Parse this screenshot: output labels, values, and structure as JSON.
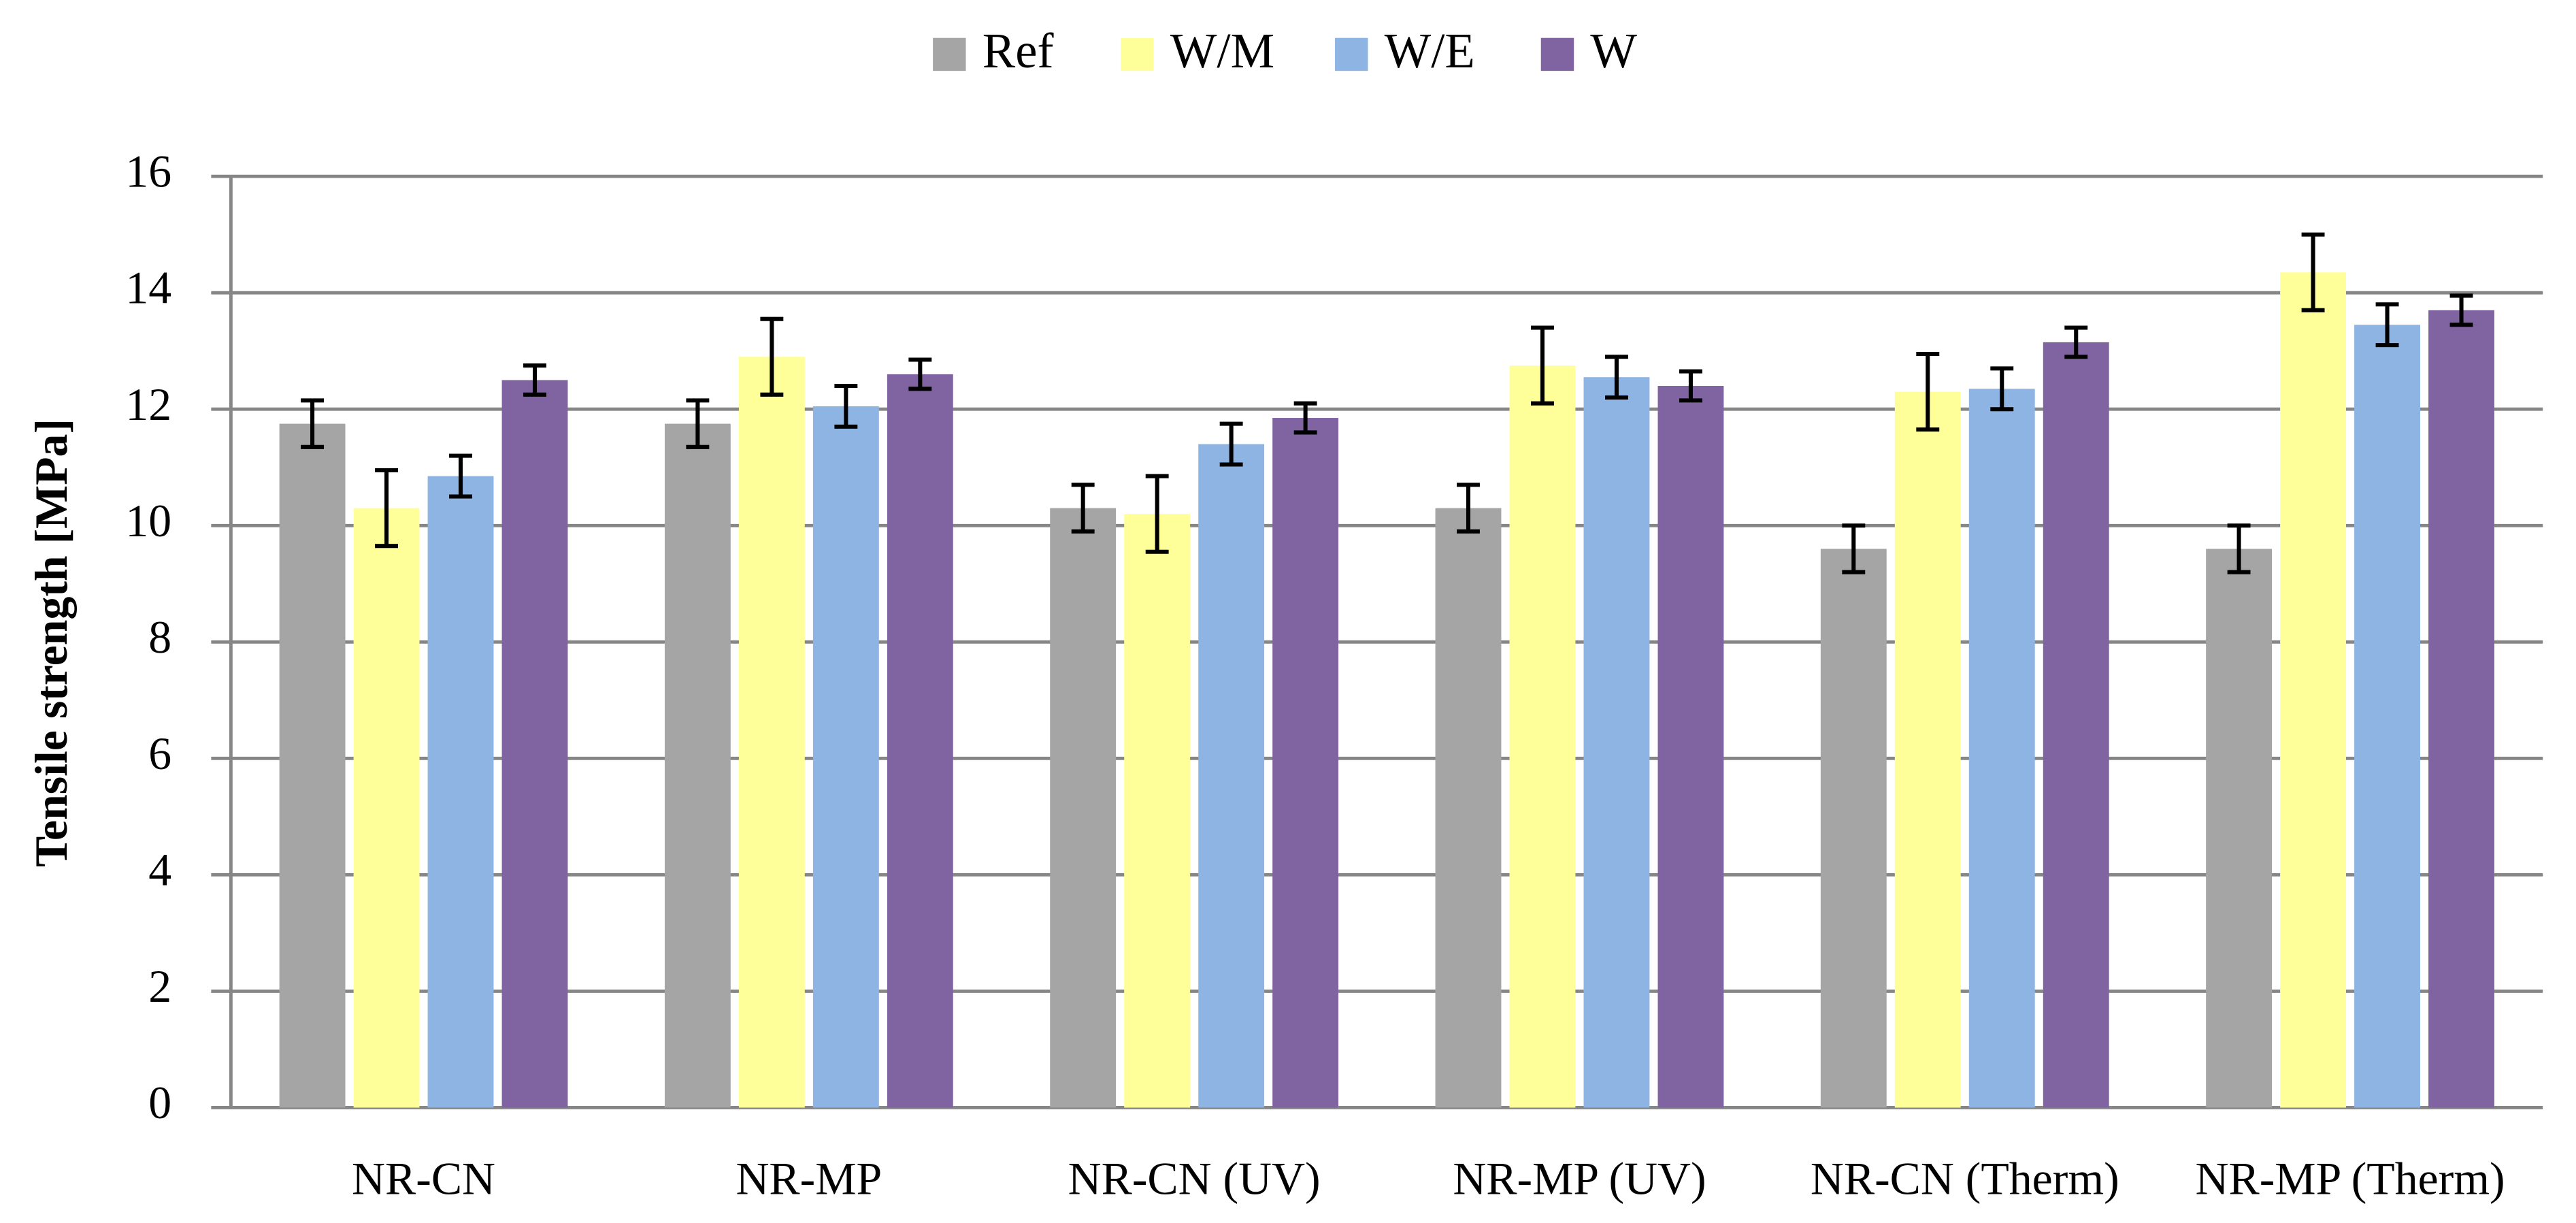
{
  "chart_data": {
    "type": "bar",
    "y_label": "Tensile strength [MPa]",
    "categories": [
      "NR-CN",
      "NR-MP",
      "NR-CN (UV)",
      "NR-MP (UV)",
      "NR-CN (Therm)",
      "NR-MP (Therm)"
    ],
    "series": [
      {
        "name": "Ref",
        "color": "#a5a5a5",
        "values": [
          11.75,
          11.75,
          10.3,
          10.3,
          9.6,
          9.6
        ],
        "errors": [
          0.4,
          0.4,
          0.4,
          0.4,
          0.4,
          0.4
        ]
      },
      {
        "name": "W/M",
        "color": "#ffff9a",
        "values": [
          10.3,
          12.9,
          10.2,
          12.75,
          12.3,
          14.35
        ],
        "errors": [
          0.65,
          0.65,
          0.65,
          0.65,
          0.65,
          0.65
        ]
      },
      {
        "name": "W/E",
        "color": "#8eb4e3",
        "values": [
          10.85,
          12.05,
          11.4,
          12.55,
          12.35,
          13.45
        ],
        "errors": [
          0.35,
          0.35,
          0.35,
          0.35,
          0.35,
          0.35
        ]
      },
      {
        "name": "W",
        "color": "#8064a2",
        "values": [
          12.5,
          12.6,
          11.85,
          12.4,
          13.15,
          13.7
        ],
        "errors": [
          0.25,
          0.25,
          0.25,
          0.25,
          0.25,
          0.25
        ]
      }
    ],
    "ylim": [
      0,
      16
    ],
    "yticks": [
      0,
      2,
      4,
      6,
      8,
      10,
      12,
      14,
      16
    ],
    "grid": true,
    "legend": "top"
  }
}
